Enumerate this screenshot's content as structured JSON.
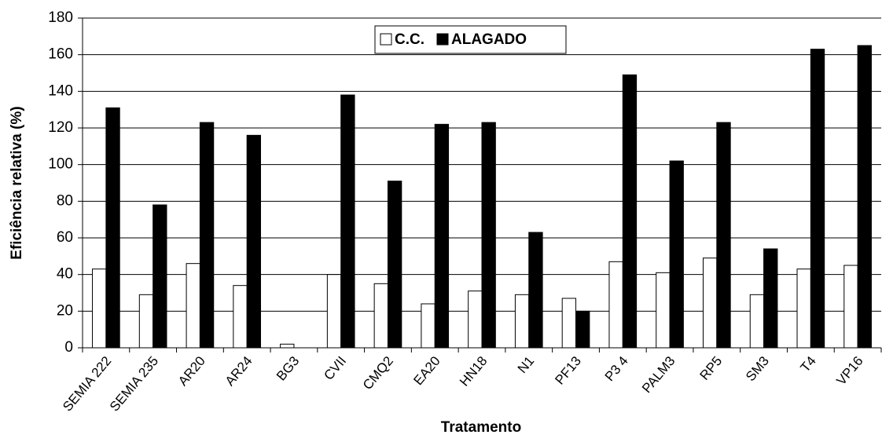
{
  "chart_data": {
    "type": "bar",
    "y_label": "Eficiência relativa (%)",
    "x_label": "Tratamento",
    "categories": [
      "SEMIA 222",
      "SEMIA 235",
      "AR20",
      "AR24",
      "BG3",
      "CVII",
      "CMQ2",
      "EA20",
      "HN18",
      "N1",
      "PF13",
      "P3 4",
      "PALM3",
      "RP5",
      "SM3",
      "T4",
      "VP16"
    ],
    "series": [
      {
        "name": "C.C.",
        "color": "#ffffff",
        "values": [
          43,
          29,
          46,
          34,
          2,
          40,
          35,
          24,
          31,
          29,
          27,
          47,
          41,
          49,
          29,
          43,
          45
        ]
      },
      {
        "name": "ALAGADO",
        "color": "#000000",
        "values": [
          131,
          78,
          123,
          116,
          0,
          138,
          91,
          122,
          123,
          63,
          20,
          149,
          102,
          123,
          54,
          163,
          165
        ]
      }
    ],
    "ylim": [
      0,
      180
    ],
    "yticks": [
      0,
      20,
      40,
      60,
      80,
      100,
      120,
      140,
      160,
      180
    ],
    "grid": true,
    "legend": "top"
  }
}
